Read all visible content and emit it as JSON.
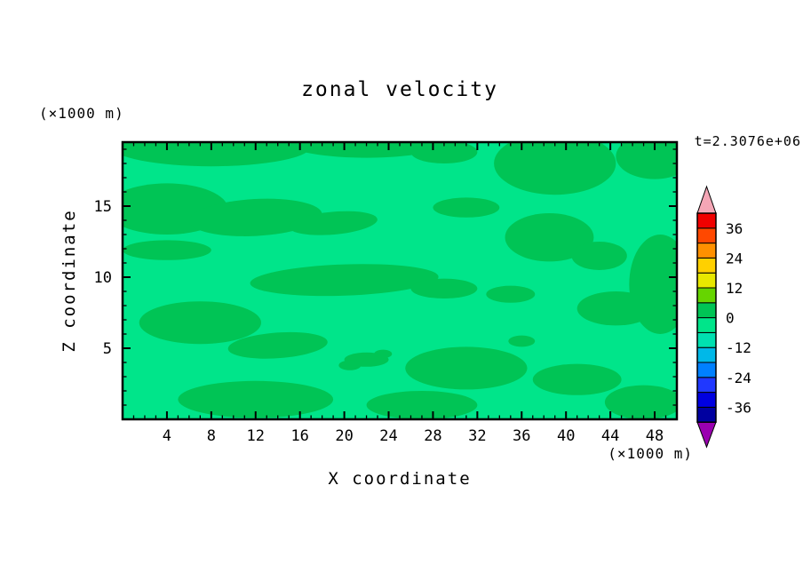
{
  "chart_data": {
    "type": "contour",
    "title": "zonal velocity",
    "xlabel": "X coordinate",
    "ylabel": "Z coordinate",
    "x_axis_units": "(×1000 m)",
    "y_axis_units": "(×1000 m)",
    "time_annotation": "t=2.3076e+06",
    "x_range": [
      0,
      50
    ],
    "z_range": [
      0,
      19.5
    ],
    "x_major_ticks": [
      4,
      8,
      12,
      16,
      20,
      24,
      28,
      32,
      36,
      40,
      44,
      48
    ],
    "x_minor_step": 1,
    "y_major_ticks": [
      5,
      10,
      15
    ],
    "y_minor_step": 1,
    "grid": false,
    "field_colors": {
      "background_band": "#00E58A",
      "blob_band": "#00C455"
    },
    "field_bands_visible": [
      "-6..0",
      "0..6"
    ],
    "blobs": [
      {
        "x": 8,
        "z": 19.2,
        "rx": 9,
        "rz": 1.4,
        "rot": 0
      },
      {
        "x": 22,
        "z": 19.4,
        "rx": 7,
        "rz": 1.0,
        "rot": 0
      },
      {
        "x": 29,
        "z": 18.8,
        "rx": 3,
        "rz": 0.8,
        "rot": 0
      },
      {
        "x": 39,
        "z": 18.0,
        "rx": 5.5,
        "rz": 2.2,
        "rot": 0
      },
      {
        "x": 48,
        "z": 18.5,
        "rx": 3.5,
        "rz": 1.6,
        "rot": 0
      },
      {
        "x": 4,
        "z": 14.8,
        "rx": 5.5,
        "rz": 1.8,
        "rot": 0
      },
      {
        "x": 12,
        "z": 14.2,
        "rx": 6,
        "rz": 1.3,
        "rot": -3
      },
      {
        "x": 19,
        "z": 13.8,
        "rx": 4,
        "rz": 0.8,
        "rot": -5
      },
      {
        "x": 4,
        "z": 11.9,
        "rx": 4,
        "rz": 0.7,
        "rot": 0
      },
      {
        "x": 31,
        "z": 14.9,
        "rx": 3,
        "rz": 0.7,
        "rot": 0
      },
      {
        "x": 38.5,
        "z": 12.8,
        "rx": 4,
        "rz": 1.7,
        "rot": 0
      },
      {
        "x": 43,
        "z": 11.5,
        "rx": 2.5,
        "rz": 1.0,
        "rot": 0
      },
      {
        "x": 48.5,
        "z": 9.5,
        "rx": 2.8,
        "rz": 3.5,
        "rot": 0
      },
      {
        "x": 20,
        "z": 9.8,
        "rx": 8.5,
        "rz": 1.1,
        "rot": -2
      },
      {
        "x": 29,
        "z": 9.2,
        "rx": 3,
        "rz": 0.7,
        "rot": 0
      },
      {
        "x": 35,
        "z": 8.8,
        "rx": 2.2,
        "rz": 0.6,
        "rot": 0
      },
      {
        "x": 44.5,
        "z": 7.8,
        "rx": 3.5,
        "rz": 1.2,
        "rot": 0
      },
      {
        "x": 7,
        "z": 6.8,
        "rx": 5.5,
        "rz": 1.5,
        "rot": 0
      },
      {
        "x": 14,
        "z": 5.2,
        "rx": 4.5,
        "rz": 0.9,
        "rot": -4
      },
      {
        "x": 22,
        "z": 4.2,
        "rx": 2.0,
        "rz": 0.5,
        "rot": 0
      },
      {
        "x": 31,
        "z": 3.6,
        "rx": 5.5,
        "rz": 1.5,
        "rot": 0
      },
      {
        "x": 41,
        "z": 2.8,
        "rx": 4,
        "rz": 1.1,
        "rot": 0
      },
      {
        "x": 12,
        "z": 1.4,
        "rx": 7,
        "rz": 1.3,
        "rot": 0
      },
      {
        "x": 27,
        "z": 1.0,
        "rx": 5,
        "rz": 1.0,
        "rot": 0
      },
      {
        "x": 47,
        "z": 1.2,
        "rx": 3.5,
        "rz": 1.2,
        "rot": 0
      },
      {
        "x": 20.5,
        "z": 3.8,
        "rx": 1.0,
        "rz": 0.35,
        "rot": 0
      },
      {
        "x": 23.5,
        "z": 4.6,
        "rx": 0.8,
        "rz": 0.3,
        "rot": 0
      },
      {
        "x": 36,
        "z": 5.5,
        "rx": 1.2,
        "rz": 0.4,
        "rot": 0
      }
    ],
    "colorbar": {
      "range": [
        -42,
        42
      ],
      "level_step": 6,
      "labels": [
        36,
        24,
        12,
        0,
        -12,
        -24,
        -36
      ],
      "segment_colors_bottom_to_top": [
        "#0000A0",
        "#0000E0",
        "#2038FF",
        "#0080FF",
        "#00B8E8",
        "#00E0B0",
        "#00E58A",
        "#00C455",
        "#66D500",
        "#E8E800",
        "#FFD000",
        "#FF9000",
        "#FF4800",
        "#F00000"
      ],
      "under_arrow_color": "#9A00B0",
      "over_arrow_color": "#F4A6B6"
    }
  }
}
